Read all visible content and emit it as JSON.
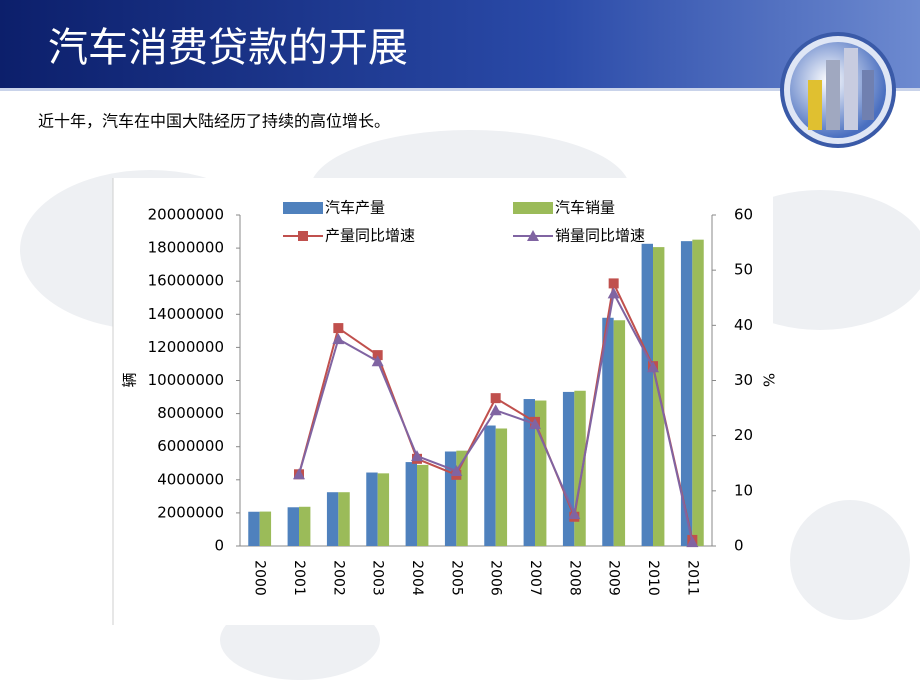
{
  "header": {
    "title": "汽车消费贷款的开展",
    "subtitle": "近十年，汽车在中国大陆经历了持续的高位增长。"
  },
  "chart_data": {
    "type": "bar-line",
    "categories": [
      "2000",
      "2001",
      "2002",
      "2003",
      "2004",
      "2005",
      "2006",
      "2007",
      "2008",
      "2009",
      "2010",
      "2011"
    ],
    "ylabel": "辆",
    "y2label": "%",
    "ylim": [
      0,
      20000000
    ],
    "yticks": [
      0,
      2000000,
      4000000,
      6000000,
      8000000,
      10000000,
      12000000,
      14000000,
      16000000,
      18000000,
      20000000
    ],
    "y2lim": [
      0,
      60
    ],
    "y2ticks": [
      0,
      10,
      20,
      30,
      40,
      50,
      60
    ],
    "series": [
      {
        "name": "汽车产量",
        "type": "bar",
        "color": "#4f81bd",
        "values": [
          2070000,
          2340000,
          3250000,
          4440000,
          5070000,
          5710000,
          7280000,
          8880000,
          9310000,
          13790000,
          18260000,
          18420000
        ]
      },
      {
        "name": "汽车销量",
        "type": "bar",
        "color": "#9bbb59",
        "values": [
          2080000,
          2370000,
          3250000,
          4390000,
          4900000,
          5760000,
          7100000,
          8790000,
          9380000,
          13640000,
          18060000,
          18510000
        ]
      },
      {
        "name": "产量同比增速",
        "type": "line",
        "axis": "y2",
        "marker": "square",
        "color": "#c0504d",
        "values": [
          null,
          13,
          39.5,
          34.6,
          15.8,
          12.9,
          26.8,
          22.5,
          5.3,
          47.6,
          32.6,
          1.1
        ]
      },
      {
        "name": "销量同比增速",
        "type": "line",
        "axis": "y2",
        "marker": "triangle",
        "color": "#8064a2",
        "values": [
          null,
          13,
          37.5,
          33.5,
          16.3,
          13.6,
          24.6,
          22.1,
          5.8,
          45.8,
          32.4,
          0.7
        ]
      }
    ]
  }
}
